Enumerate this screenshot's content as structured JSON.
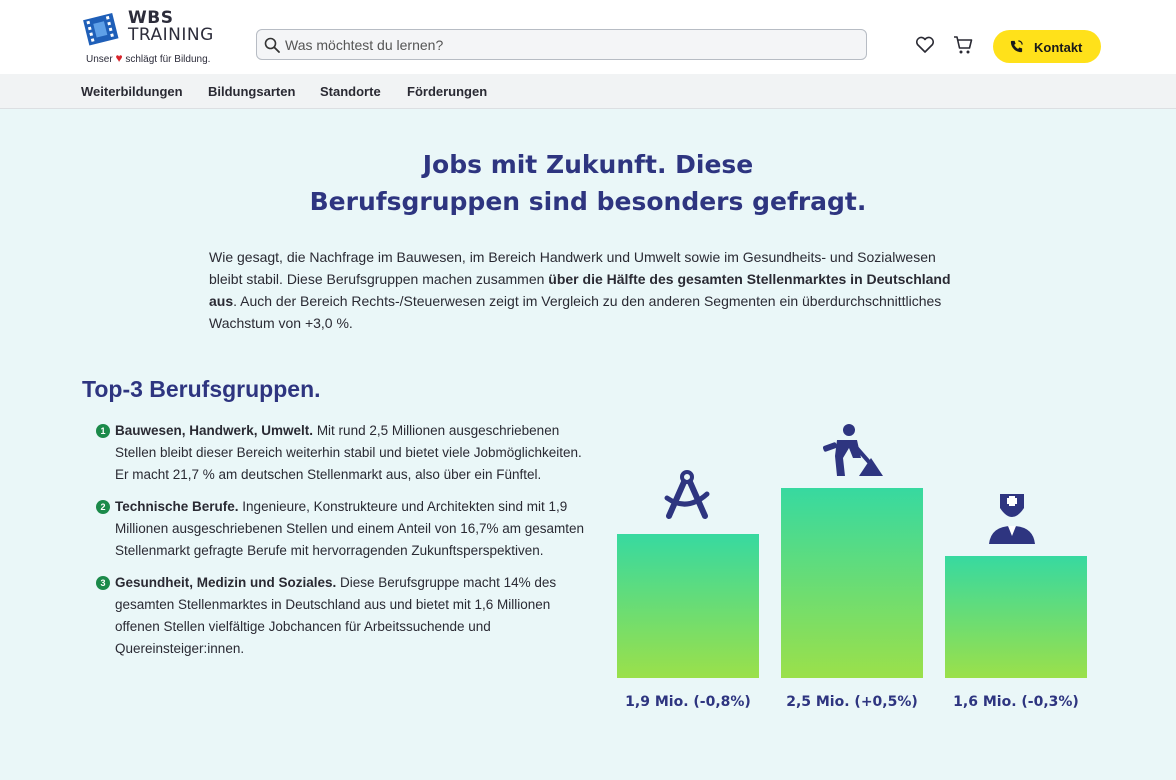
{
  "header": {
    "logo_line1": "WBS",
    "logo_line2": "TRAINING",
    "tagline_pre": "Unser",
    "tagline_post": "schlägt für Bildung.",
    "search_placeholder": "Was möchtest du lernen?",
    "contact_label": "Kontakt",
    "accent_color": "#ffe11a"
  },
  "nav": {
    "items": [
      "Weiterbildungen",
      "Bildungsarten",
      "Standorte",
      "Förderungen"
    ]
  },
  "main": {
    "heading_line1": "Jobs mit Zukunft. Diese",
    "heading_line2": "Berufsgruppen sind besonders gefragt.",
    "intro_part1": "Wie gesagt, die Nachfrage im Bauwesen, im Bereich Handwerk und Umwelt sowie im Gesundheits- und Sozialwesen bleibt stabil. Diese Berufsgruppen machen zusammen ",
    "intro_bold": "über die Hälfte des gesamten Stellenmarktes in Deutschland aus",
    "intro_part2": ". Auch der Bereich Rechts-/Steuerwesen zeigt im Vergleich zu den anderen Segmenten ein überdurchschnittliches Wachstum von +3,0 %.",
    "subheading": "Top-3 Berufsgruppen.",
    "items": [
      {
        "num": "1",
        "title": "Bauwesen, Handwerk, Umwelt.",
        "text": " Mit rund 2,5 Millionen ausgeschriebenen Stellen bleibt dieser Bereich weiterhin stabil und bietet viele Jobmöglichkeiten. Er macht 21,7 % am deutschen Stellenmarkt aus, also über ein Fünftel."
      },
      {
        "num": "2",
        "title": "Technische Berufe.",
        "text": " Ingenieure, Konstrukteure und Architekten sind mit 1,9 Millionen ausgeschriebenen Stellen und einem Anteil von 16,7% am gesamten Stellenmarkt gefragte Berufe mit hervorragenden Zukunftsperspektiven."
      },
      {
        "num": "3",
        "title": "Gesundheit, Medizin und Soziales.",
        "text": " Diese Berufsgruppe macht 14% des gesamten Stellenmarktes in Deutschland aus und bietet mit 1,6 Millionen offenen Stellen vielfältige Jobchancen für Arbeitssuchende und Quereinsteiger:innen."
      }
    ]
  },
  "chart_data": {
    "type": "bar",
    "categories": [
      "1,9 Mio. (-0,8%)",
      "2,5 Mio. (+0,5%)",
      "1,6 Mio. (-0,3%)"
    ],
    "values": [
      1.9,
      2.5,
      1.6
    ],
    "icons": [
      "compass-icon",
      "construction-worker-icon",
      "nurse-icon"
    ],
    "colors": {
      "bar_top": "#37d9a0",
      "bar_bottom": "#9be04a",
      "label": "#2e3580"
    }
  }
}
